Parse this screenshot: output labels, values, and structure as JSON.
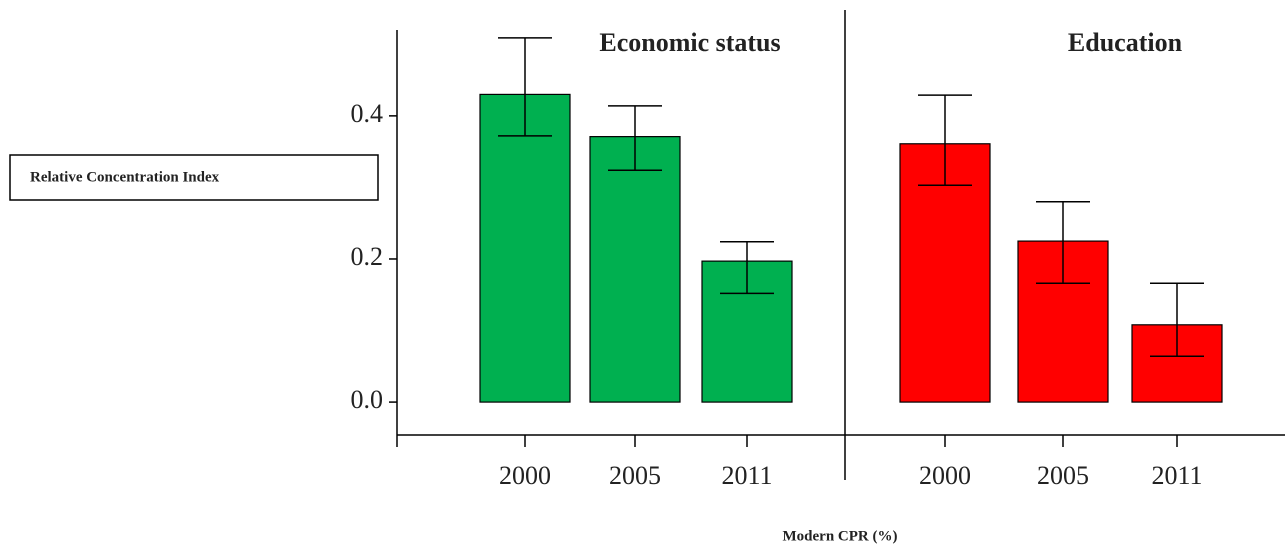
{
  "chart_data": {
    "type": "bar",
    "y_label": "Relative Concentration Index",
    "x_label": "Modern CPR (%)",
    "categories": [
      "2000",
      "2005",
      "2011"
    ],
    "series": [
      {
        "name": "Economic status",
        "color": "#00b050",
        "values": [
          0.43,
          0.371,
          0.197
        ],
        "ci_low": [
          0.372,
          0.324,
          0.152
        ],
        "ci_high": [
          0.509,
          0.414,
          0.224
        ]
      },
      {
        "name": "Education",
        "color": "#ff0000",
        "values": [
          0.361,
          0.225,
          0.108
        ],
        "ci_low": [
          0.303,
          0.166,
          0.064
        ],
        "ci_high": [
          0.429,
          0.28,
          0.166
        ]
      }
    ],
    "ylim": [
      -0.046,
      0.52
    ],
    "yticks": [
      {
        "value": 0,
        "label": "0.0"
      },
      0.2,
      0.4
    ]
  }
}
